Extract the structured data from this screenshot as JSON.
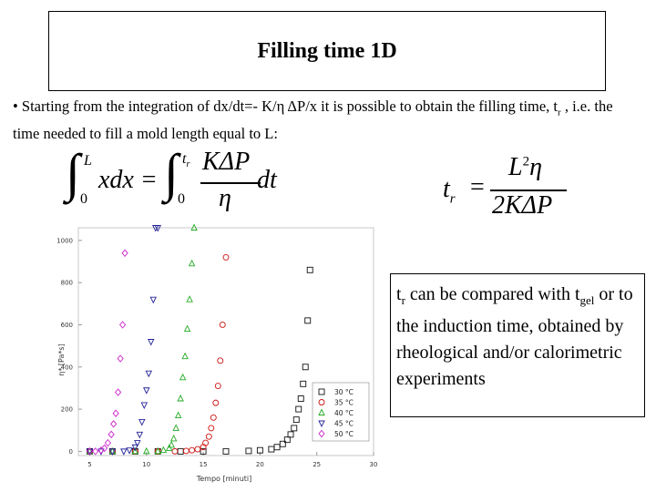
{
  "slide": {
    "title": "Filling time 1D",
    "bullet": "• Starting from the integration of dx/dt=- K/η ΔP/x it is possible to obtain the filling time, t",
    "bullet_sub": "r",
    "bullet_tail": " , i.e. the time needed to fill a mold length equal to L:",
    "callout": {
      "p1": "t",
      "p1_sub": "r",
      "p2": " can be compared with t",
      "p2_sub": "gel",
      "p3": " or to the induction time, obtained by rheological and/or calorimetric experiments"
    }
  },
  "formula_left": {
    "upper_limit_1": "L",
    "lower_limit_1": "0",
    "integrand_1": "xdx =",
    "upper_limit_2": "t",
    "upper_limit_2_sub": "r",
    "lower_limit_2": "0",
    "numerator": "KΔP",
    "denominator": "η",
    "tail": "dt"
  },
  "formula_right": {
    "lhs": "t",
    "lhs_sub": "r",
    "eq": "=",
    "numerator": "L",
    "numerator_sup": "2",
    "numerator_tail": "η",
    "denominator": "2KΔP"
  },
  "chart_data": {
    "type": "scatter",
    "xlabel": "Tempo [minuti]",
    "ylabel": "η* [Pa*s]",
    "xlim": [
      4,
      30
    ],
    "ylim": [
      -20,
      1060
    ],
    "x_ticks": [
      "5",
      "10",
      "15",
      "20",
      "25",
      "30"
    ],
    "y_ticks": [
      "0",
      "200",
      "400",
      "600",
      "800",
      "1000"
    ],
    "legend_position": "bottom-right",
    "series": [
      {
        "name": "30 °C",
        "color": "#111111",
        "marker": "square",
        "x": [
          5,
          7,
          9,
          11,
          13,
          15,
          17,
          19,
          20,
          21,
          21.5,
          22,
          22.4,
          22.7,
          23,
          23.2,
          23.4,
          23.6,
          23.8,
          24,
          24.2,
          24.4
        ],
        "y": [
          0,
          0,
          0,
          0,
          0,
          0,
          0,
          2,
          5,
          10,
          20,
          35,
          55,
          80,
          110,
          150,
          200,
          250,
          320,
          400,
          620,
          860
        ]
      },
      {
        "name": "35 °C",
        "color": "#cc1111",
        "marker": "circle",
        "x": [
          5,
          7,
          9,
          11,
          12.5,
          13.5,
          14,
          14.5,
          15,
          15.2,
          15.5,
          15.7,
          15.9,
          16.1,
          16.3,
          16.5,
          16.7,
          17
        ],
        "y": [
          0,
          0,
          0,
          0,
          0,
          2,
          5,
          10,
          20,
          40,
          70,
          110,
          160,
          230,
          310,
          430,
          600,
          920
        ]
      },
      {
        "name": "40 °C",
        "color": "#22aa22",
        "marker": "triangle-up",
        "x": [
          5,
          7,
          9,
          10,
          11,
          11.5,
          12,
          12.2,
          12.4,
          12.6,
          12.8,
          13,
          13.2,
          13.4,
          13.6,
          13.8,
          14,
          14.2
        ],
        "y": [
          0,
          0,
          0,
          0,
          0,
          5,
          15,
          30,
          60,
          110,
          170,
          250,
          350,
          450,
          580,
          720,
          890,
          1060
        ]
      },
      {
        "name": "45 °C",
        "color": "#222299",
        "marker": "triangle-down",
        "x": [
          5,
          6,
          7,
          8,
          8.5,
          9,
          9.2,
          9.4,
          9.6,
          9.8,
          10,
          10.2,
          10.4,
          10.6,
          10.8,
          11
        ],
        "y": [
          0,
          0,
          0,
          0,
          5,
          20,
          40,
          80,
          140,
          220,
          290,
          370,
          520,
          720,
          1060,
          1060
        ]
      },
      {
        "name": "50 °C",
        "color": "#cc22cc",
        "marker": "diamond",
        "x": [
          5,
          5.5,
          6,
          6.3,
          6.6,
          6.9,
          7.1,
          7.3,
          7.5,
          7.7,
          7.9,
          8.1
        ],
        "y": [
          0,
          0,
          5,
          15,
          40,
          80,
          130,
          180,
          280,
          440,
          600,
          940
        ]
      }
    ]
  }
}
